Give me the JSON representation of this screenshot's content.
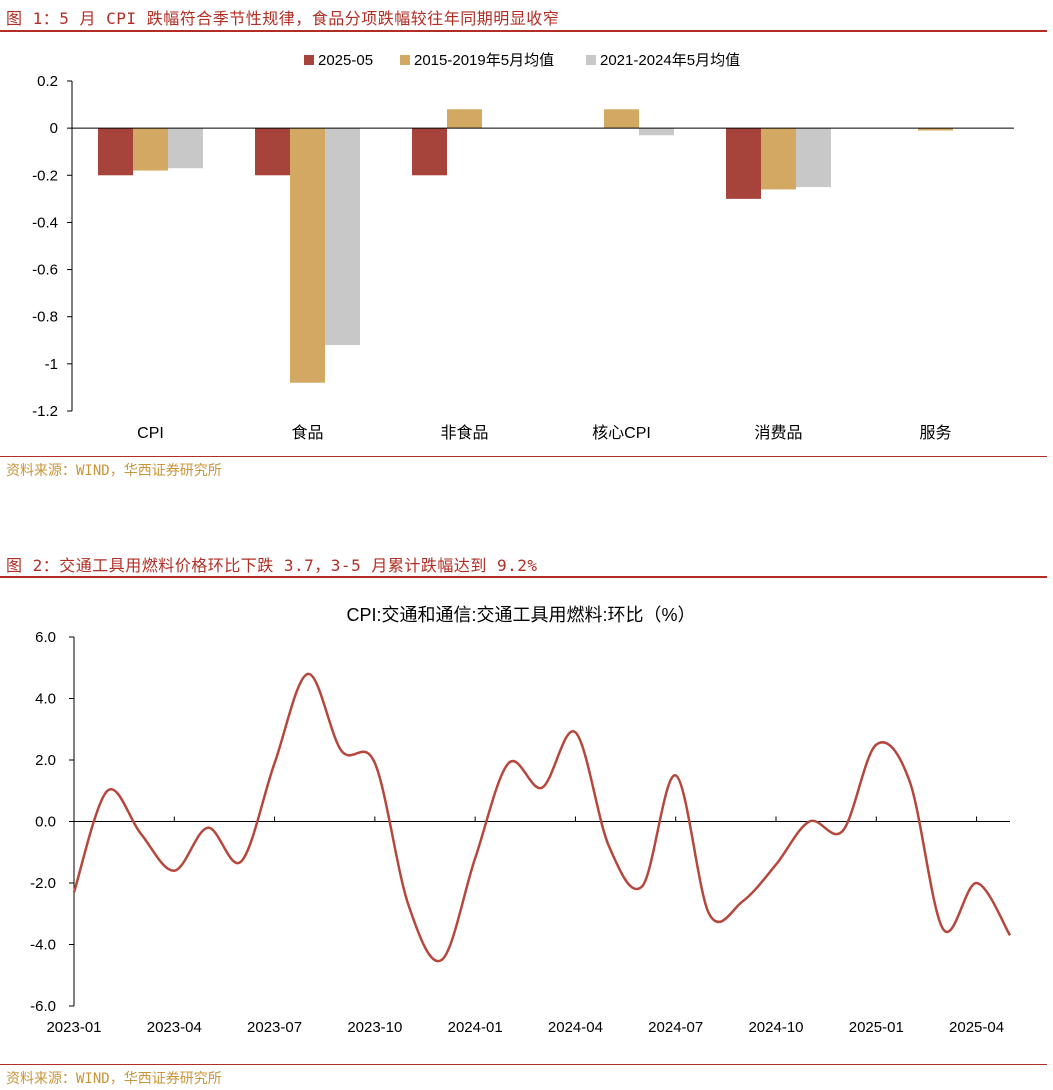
{
  "figure1": {
    "caption": "图 1：5 月 CPI 跌幅符合季节性规律，食品分项跌幅较往年同期明显收窄",
    "source": "资料来源：WIND，华西证券研究所"
  },
  "figure2": {
    "caption": "图 2：交通工具用燃料价格环比下跌 3.7，3-5 月累计跌幅达到 9.2%",
    "source": "资料来源：WIND，华西证券研究所"
  },
  "colors": {
    "accent": "#b22e25",
    "source_text": "#c8953a",
    "series_2025": "#a6433a",
    "series_1519": "#d3a862",
    "series_2124": "#c8c8c8",
    "line": "#b5473c"
  },
  "chart_data": [
    {
      "type": "bar",
      "title": "",
      "categories": [
        "CPI",
        "食品",
        "非食品",
        "核心CPI",
        "消费品",
        "服务"
      ],
      "series": [
        {
          "name": "2025-05",
          "values": [
            -0.2,
            -0.2,
            -0.2,
            0.0,
            -0.3,
            0.0
          ]
        },
        {
          "name": "2015-2019年5月均值",
          "values": [
            -0.18,
            -1.08,
            0.08,
            0.08,
            -0.26,
            -0.01
          ]
        },
        {
          "name": "2021-2024年5月均值",
          "values": [
            -0.17,
            -0.92,
            0.0,
            -0.03,
            -0.25,
            0.0
          ]
        }
      ],
      "ylim": [
        -1.2,
        0.2
      ],
      "yticks": [
        "0.2",
        "0",
        "-0.2",
        "-0.4",
        "-0.6",
        "-0.8",
        "-1",
        "-1.2"
      ],
      "legend_position": "top",
      "grid": false
    },
    {
      "type": "line",
      "title": "CPI:交通和通信:交通工具用燃料:环比（%）",
      "x": [
        "2023-01",
        "2023-02",
        "2023-03",
        "2023-04",
        "2023-05",
        "2023-06",
        "2023-07",
        "2023-08",
        "2023-09",
        "2023-10",
        "2023-11",
        "2023-12",
        "2024-01",
        "2024-02",
        "2024-03",
        "2024-04",
        "2024-05",
        "2024-06",
        "2024-07",
        "2024-08",
        "2024-09",
        "2024-10",
        "2024-11",
        "2024-12",
        "2025-01",
        "2025-02",
        "2025-03",
        "2025-04",
        "2025-05"
      ],
      "series": [
        {
          "values": [
            -2.3,
            1.0,
            -0.4,
            -1.6,
            -0.2,
            -1.3,
            1.9,
            4.8,
            2.3,
            1.9,
            -2.7,
            -4.5,
            -1.2,
            1.9,
            1.1,
            2.9,
            -0.8,
            -2.1,
            1.5,
            -3.0,
            -2.6,
            -1.4,
            0.0,
            -0.3,
            2.5,
            1.3,
            -3.5,
            -2.0,
            -3.7
          ]
        }
      ],
      "xticks": [
        "2023-01",
        "2023-04",
        "2023-07",
        "2023-10",
        "2024-01",
        "2024-04",
        "2024-07",
        "2024-10",
        "2025-01",
        "2025-04"
      ],
      "yticks": [
        "6.0",
        "4.0",
        "2.0",
        "0.0",
        "-2.0",
        "-4.0",
        "-6.0"
      ],
      "ylim": [
        -6.0,
        6.0
      ],
      "grid": false
    }
  ]
}
